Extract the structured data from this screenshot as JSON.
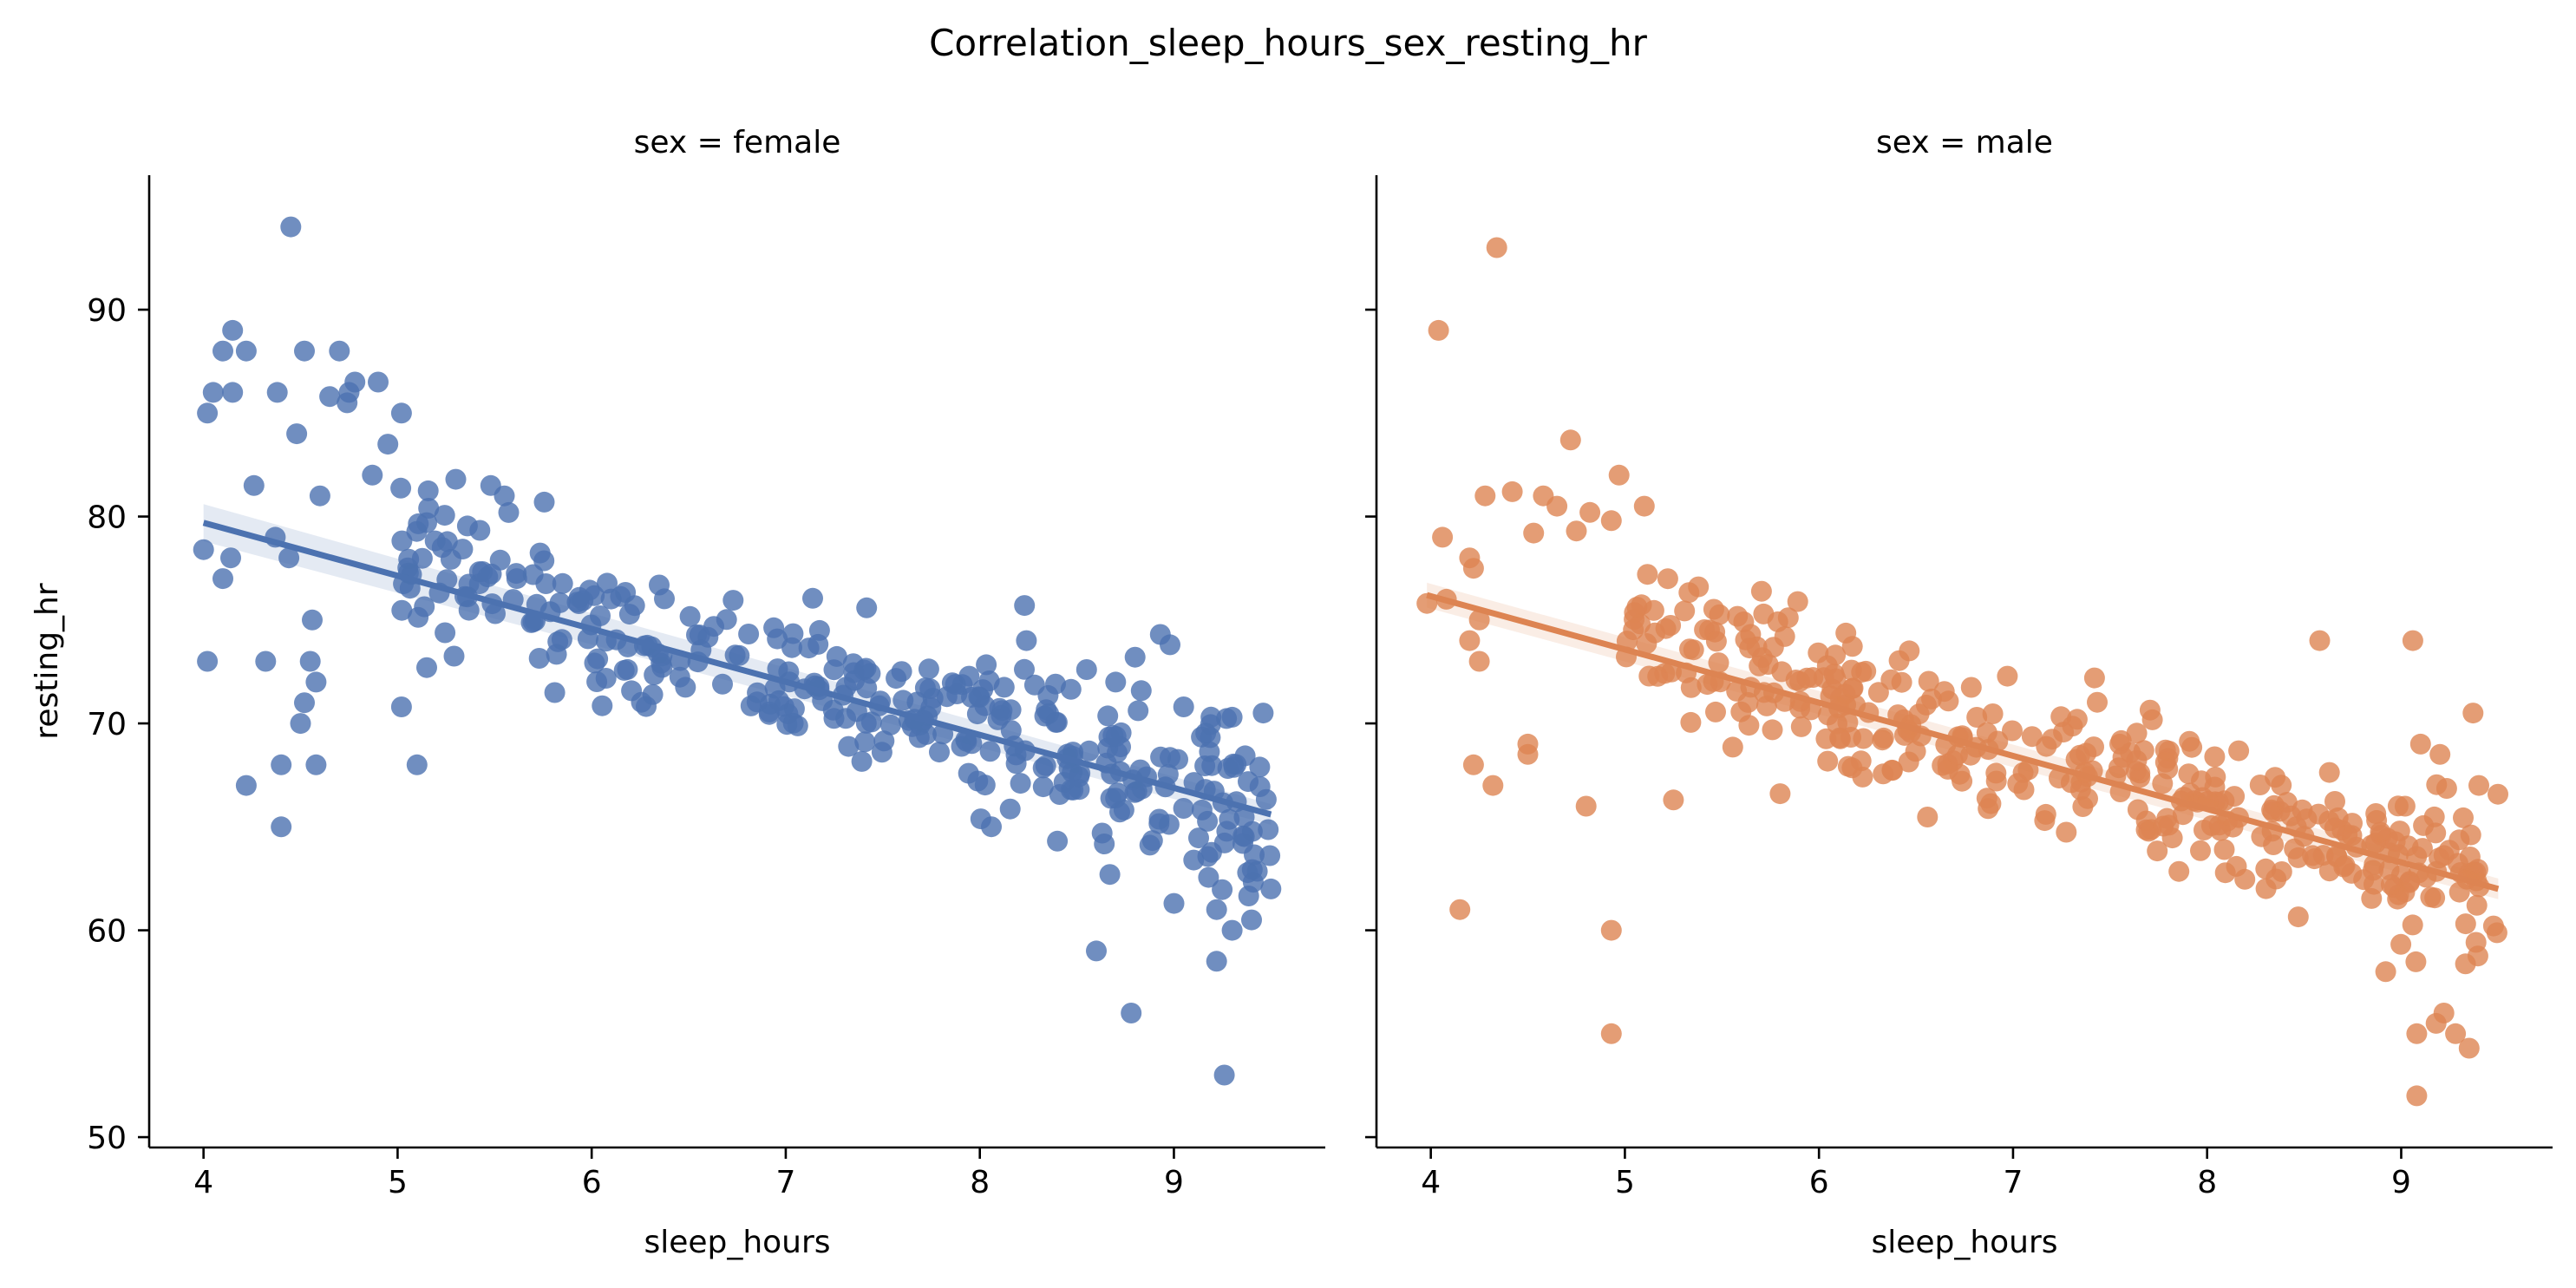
{
  "chart_data": {
    "type": "scatter",
    "title": "Correlation_sleep_hours_sex_resting_hr",
    "xlabel": "sleep_hours",
    "ylabel": "resting_hr",
    "xlim": [
      3.72,
      9.78
    ],
    "ylim": [
      49.5,
      96.5
    ],
    "xticks": [
      4,
      5,
      6,
      7,
      8,
      9
    ],
    "yticks": [
      50,
      60,
      70,
      80,
      90
    ],
    "sharey": true,
    "grid": false,
    "panels": [
      {
        "title": "sex = female",
        "color": "#4c72b0",
        "regression": {
          "x": [
            4.0,
            9.5
          ],
          "y": [
            79.7,
            65.6
          ],
          "ci_start_halfwidth": 0.9,
          "ci_end_halfwidth": 0.5
        },
        "outliers": [
          [
            4.45,
            94
          ],
          [
            4.15,
            89
          ],
          [
            4.1,
            88
          ],
          [
            4.22,
            88
          ],
          [
            4.52,
            88
          ],
          [
            4.7,
            88
          ],
          [
            4.05,
            86
          ],
          [
            4.15,
            86
          ],
          [
            4.38,
            86
          ],
          [
            4.65,
            85.8
          ],
          [
            4.75,
            86
          ],
          [
            4.78,
            86.5
          ],
          [
            4.9,
            86.5
          ],
          [
            4.02,
            85
          ],
          [
            4.74,
            85.5
          ],
          [
            5.02,
            85
          ],
          [
            4.48,
            84
          ],
          [
            4.95,
            83.5
          ],
          [
            4.26,
            81.5
          ],
          [
            4.6,
            81
          ],
          [
            4.87,
            82
          ],
          [
            4.0,
            78.4
          ],
          [
            4.14,
            78
          ],
          [
            4.1,
            77
          ],
          [
            4.02,
            73
          ],
          [
            4.37,
            79
          ],
          [
            4.44,
            78
          ],
          [
            4.32,
            73
          ],
          [
            4.56,
            75
          ],
          [
            4.55,
            73
          ],
          [
            4.58,
            72
          ],
          [
            4.52,
            71
          ],
          [
            4.5,
            70
          ],
          [
            4.58,
            68
          ],
          [
            4.4,
            68
          ],
          [
            4.22,
            67
          ],
          [
            4.4,
            65
          ],
          [
            5.1,
            68
          ],
          [
            5.02,
            70.8
          ],
          [
            5.15,
            72.7
          ],
          [
            5.48,
            81.5
          ],
          [
            5.55,
            81
          ],
          [
            5.3,
            81.8
          ],
          [
            5.16,
            80.4
          ],
          [
            8.23,
            75.7
          ],
          [
            8.24,
            74
          ],
          [
            8.7,
            72
          ],
          [
            8.8,
            73.2
          ],
          [
            8.93,
            74.3
          ],
          [
            8.98,
            73.8
          ],
          [
            9.0,
            61.3
          ],
          [
            9.22,
            61
          ],
          [
            9.3,
            60
          ],
          [
            9.4,
            60.5
          ],
          [
            8.6,
            59
          ],
          [
            9.22,
            58.5
          ],
          [
            8.78,
            56
          ],
          [
            9.26,
            53
          ],
          [
            9.5,
            62
          ],
          [
            8.67,
            62.7
          ],
          [
            8.63,
            64.7
          ],
          [
            9.3,
            70.3
          ],
          [
            9.46,
            70.5
          ],
          [
            9.05,
            70.8
          ],
          [
            8.55,
            72.6
          ]
        ],
        "n_trend": 340,
        "trend_noise": 1.8
      },
      {
        "title": "sex = male",
        "color": "#dd8452",
        "regression": {
          "x": [
            3.98,
            9.5
          ],
          "y": [
            76.2,
            62.0
          ],
          "ci_start_halfwidth": 0.6,
          "ci_end_halfwidth": 0.5
        },
        "outliers": [
          [
            4.34,
            93
          ],
          [
            4.04,
            89
          ],
          [
            4.72,
            83.7
          ],
          [
            4.97,
            82
          ],
          [
            5.1,
            80.5
          ],
          [
            4.28,
            81
          ],
          [
            4.42,
            81.2
          ],
          [
            4.58,
            81
          ],
          [
            4.65,
            80.5
          ],
          [
            4.82,
            80.2
          ],
          [
            4.93,
            79.8
          ],
          [
            4.06,
            79
          ],
          [
            4.53,
            79.2
          ],
          [
            4.75,
            79.3
          ],
          [
            4.22,
            77.5
          ],
          [
            4.2,
            78
          ],
          [
            3.98,
            75.8
          ],
          [
            4.08,
            76
          ],
          [
            4.25,
            73
          ],
          [
            4.25,
            75
          ],
          [
            4.2,
            74
          ],
          [
            4.32,
            67
          ],
          [
            4.22,
            68
          ],
          [
            4.5,
            68.5
          ],
          [
            4.5,
            69
          ],
          [
            4.15,
            61
          ],
          [
            4.93,
            60
          ],
          [
            4.93,
            55
          ],
          [
            4.8,
            66
          ],
          [
            5.25,
            66.3
          ],
          [
            5.8,
            66.6
          ],
          [
            5.68,
            73.7
          ],
          [
            8.58,
            74
          ],
          [
            9.06,
            74
          ],
          [
            9.02,
            66
          ],
          [
            9.1,
            69
          ],
          [
            9.2,
            68.5
          ],
          [
            9.08,
            55
          ],
          [
            9.18,
            55.5
          ],
          [
            9.22,
            56
          ],
          [
            9.28,
            55
          ],
          [
            9.35,
            54.3
          ],
          [
            9.08,
            52
          ],
          [
            8.92,
            58
          ],
          [
            9.37,
            70.5
          ],
          [
            9.4,
            67
          ],
          [
            7.42,
            72.2
          ],
          [
            7.55,
            69
          ]
        ],
        "n_trend": 360,
        "trend_noise": 1.8
      }
    ]
  }
}
